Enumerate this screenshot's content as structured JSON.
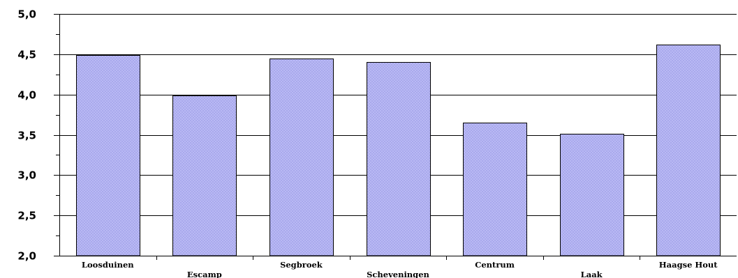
{
  "chart_data": {
    "type": "bar",
    "categories": [
      "Loosduinen",
      "Escamp",
      "Segbroek",
      "Scheveningen",
      "Centrum",
      "Laak",
      "Haagse Hout"
    ],
    "values": [
      4.49,
      3.99,
      4.45,
      4.4,
      3.65,
      3.51,
      4.62
    ],
    "ylim": [
      2.0,
      5.0
    ],
    "yticks": [
      "2,0",
      "2,5",
      "3,0",
      "3,5",
      "4,0",
      "4,5",
      "5,0"
    ],
    "grid": true,
    "legend": "none",
    "colors": {
      "bar_fill": "#b3b3f2",
      "bar_stroke": "#000000",
      "grid": "#000000"
    }
  }
}
